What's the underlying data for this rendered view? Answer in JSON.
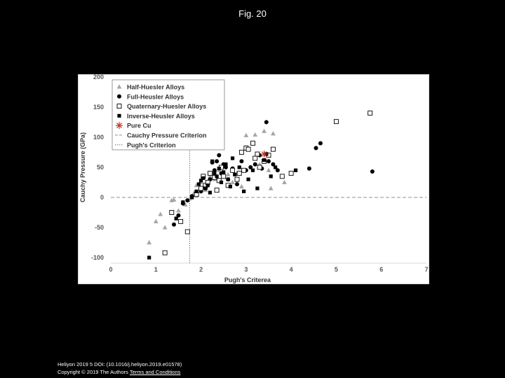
{
  "slide": {
    "title": "Fig. 20",
    "citation": "Heliyon 2019 5 DOI: (10.1016/j.heliyon.2019.e01578)",
    "copyright": "Copyright © 2019 The Authors",
    "terms_link": "Terms and Conditions"
  },
  "chart_data": {
    "type": "scatter",
    "title": "",
    "xlabel": "Pugh's Criterea",
    "ylabel": "Cauchy Pressure (GPa)",
    "xlim": [
      0,
      7
    ],
    "ylim": [
      -100,
      200
    ],
    "xticks": [
      0,
      1,
      2,
      3,
      4,
      5,
      6,
      7
    ],
    "yticks": [
      -100,
      -50,
      0,
      50,
      100,
      150,
      200
    ],
    "grid": false,
    "legend_position": "top-left",
    "reference_lines": [
      {
        "name": "Cauchy Pressure Criterion",
        "orientation": "horizontal",
        "value": 0,
        "style": "dashed",
        "color": "#a6a6a6"
      },
      {
        "name": "Pugh's Criterion",
        "orientation": "vertical",
        "value": 1.75,
        "style": "dotted",
        "color": "#808080"
      }
    ],
    "series": [
      {
        "name": "Half-Huesler Alloys",
        "marker": "triangle",
        "color": "#a6a6a6",
        "points": [
          [
            0.85,
            -75
          ],
          [
            1.0,
            -40
          ],
          [
            1.1,
            -28
          ],
          [
            1.2,
            -50
          ],
          [
            1.35,
            -5
          ],
          [
            1.4,
            -4
          ],
          [
            1.5,
            -22
          ],
          [
            1.45,
            -35
          ],
          [
            1.6,
            -8
          ],
          [
            1.65,
            -12
          ],
          [
            1.75,
            -2
          ],
          [
            1.85,
            8
          ],
          [
            1.9,
            20
          ],
          [
            2.0,
            25
          ],
          [
            2.1,
            12
          ],
          [
            2.2,
            35
          ],
          [
            2.3,
            30
          ],
          [
            2.4,
            45
          ],
          [
            2.5,
            55
          ],
          [
            2.6,
            38
          ],
          [
            2.7,
            25
          ],
          [
            2.8,
            40
          ],
          [
            2.9,
            18
          ],
          [
            3.0,
            103
          ],
          [
            3.2,
            104
          ],
          [
            3.4,
            110
          ],
          [
            3.6,
            106
          ],
          [
            3.55,
            15
          ],
          [
            3.3,
            55
          ],
          [
            3.5,
            45
          ],
          [
            3.85,
            25
          ]
        ]
      },
      {
        "name": "Full-Heusler Alloys",
        "marker": "circle",
        "color": "#000000",
        "points": [
          [
            1.4,
            -45
          ],
          [
            1.5,
            -30
          ],
          [
            1.6,
            -10
          ],
          [
            1.7,
            -5
          ],
          [
            1.8,
            2
          ],
          [
            1.9,
            5
          ],
          [
            2.0,
            10
          ],
          [
            2.1,
            15
          ],
          [
            2.2,
            30
          ],
          [
            2.25,
            58
          ],
          [
            2.3,
            45
          ],
          [
            2.35,
            60
          ],
          [
            2.4,
            70
          ],
          [
            2.45,
            40
          ],
          [
            2.5,
            55
          ],
          [
            2.55,
            50
          ],
          [
            2.6,
            30
          ],
          [
            2.7,
            48
          ],
          [
            2.8,
            22
          ],
          [
            2.9,
            60
          ],
          [
            3.0,
            45
          ],
          [
            3.1,
            50
          ],
          [
            3.2,
            55
          ],
          [
            3.3,
            70
          ],
          [
            3.35,
            48
          ],
          [
            3.45,
            125
          ],
          [
            3.5,
            60
          ],
          [
            3.6,
            55
          ],
          [
            3.7,
            45
          ],
          [
            4.4,
            48
          ],
          [
            4.55,
            82
          ],
          [
            4.65,
            90
          ],
          [
            5.8,
            43
          ]
        ]
      },
      {
        "name": "Quaternary-Huesler Alloys",
        "marker": "square-open",
        "color": "#000000",
        "points": [
          [
            1.2,
            -92
          ],
          [
            1.35,
            -25
          ],
          [
            1.55,
            -40
          ],
          [
            1.7,
            -57
          ],
          [
            1.9,
            5
          ],
          [
            2.0,
            15
          ],
          [
            2.05,
            35
          ],
          [
            2.1,
            20
          ],
          [
            2.15,
            25
          ],
          [
            2.2,
            40
          ],
          [
            2.3,
            33
          ],
          [
            2.35,
            12
          ],
          [
            2.4,
            28
          ],
          [
            2.45,
            50
          ],
          [
            2.5,
            35
          ],
          [
            2.6,
            20
          ],
          [
            2.7,
            45
          ],
          [
            2.8,
            30
          ],
          [
            2.85,
            40
          ],
          [
            2.9,
            75
          ],
          [
            2.95,
            45
          ],
          [
            3.0,
            82
          ],
          [
            3.05,
            80
          ],
          [
            3.15,
            90
          ],
          [
            3.2,
            65
          ],
          [
            3.25,
            72
          ],
          [
            3.3,
            50
          ],
          [
            3.4,
            60
          ],
          [
            3.5,
            70
          ],
          [
            3.6,
            80
          ],
          [
            3.8,
            35
          ],
          [
            4.0,
            40
          ],
          [
            5.0,
            126
          ],
          [
            5.75,
            140
          ]
        ]
      },
      {
        "name": "Inverse-Heusler Alloys",
        "marker": "square",
        "color": "#000000",
        "points": [
          [
            0.85,
            -100
          ],
          [
            1.45,
            -35
          ],
          [
            1.6,
            -8
          ],
          [
            1.8,
            0
          ],
          [
            1.9,
            10
          ],
          [
            1.95,
            22
          ],
          [
            2.0,
            28
          ],
          [
            2.05,
            32
          ],
          [
            2.1,
            15
          ],
          [
            2.15,
            20
          ],
          [
            2.2,
            8
          ],
          [
            2.25,
            60
          ],
          [
            2.3,
            40
          ],
          [
            2.35,
            35
          ],
          [
            2.4,
            48
          ],
          [
            2.45,
            25
          ],
          [
            2.5,
            42
          ],
          [
            2.55,
            55
          ],
          [
            2.6,
            30
          ],
          [
            2.65,
            18
          ],
          [
            2.7,
            65
          ],
          [
            2.75,
            38
          ],
          [
            2.85,
            50
          ],
          [
            2.95,
            10
          ],
          [
            3.05,
            30
          ],
          [
            3.15,
            45
          ],
          [
            3.25,
            15
          ],
          [
            3.4,
            62
          ],
          [
            3.45,
            72
          ],
          [
            3.55,
            35
          ],
          [
            3.65,
            50
          ],
          [
            4.1,
            45
          ]
        ]
      },
      {
        "name": "Pure Cu",
        "marker": "asterisk",
        "color": "#c0392b",
        "points": [
          [
            3.4,
            72
          ]
        ]
      }
    ]
  }
}
